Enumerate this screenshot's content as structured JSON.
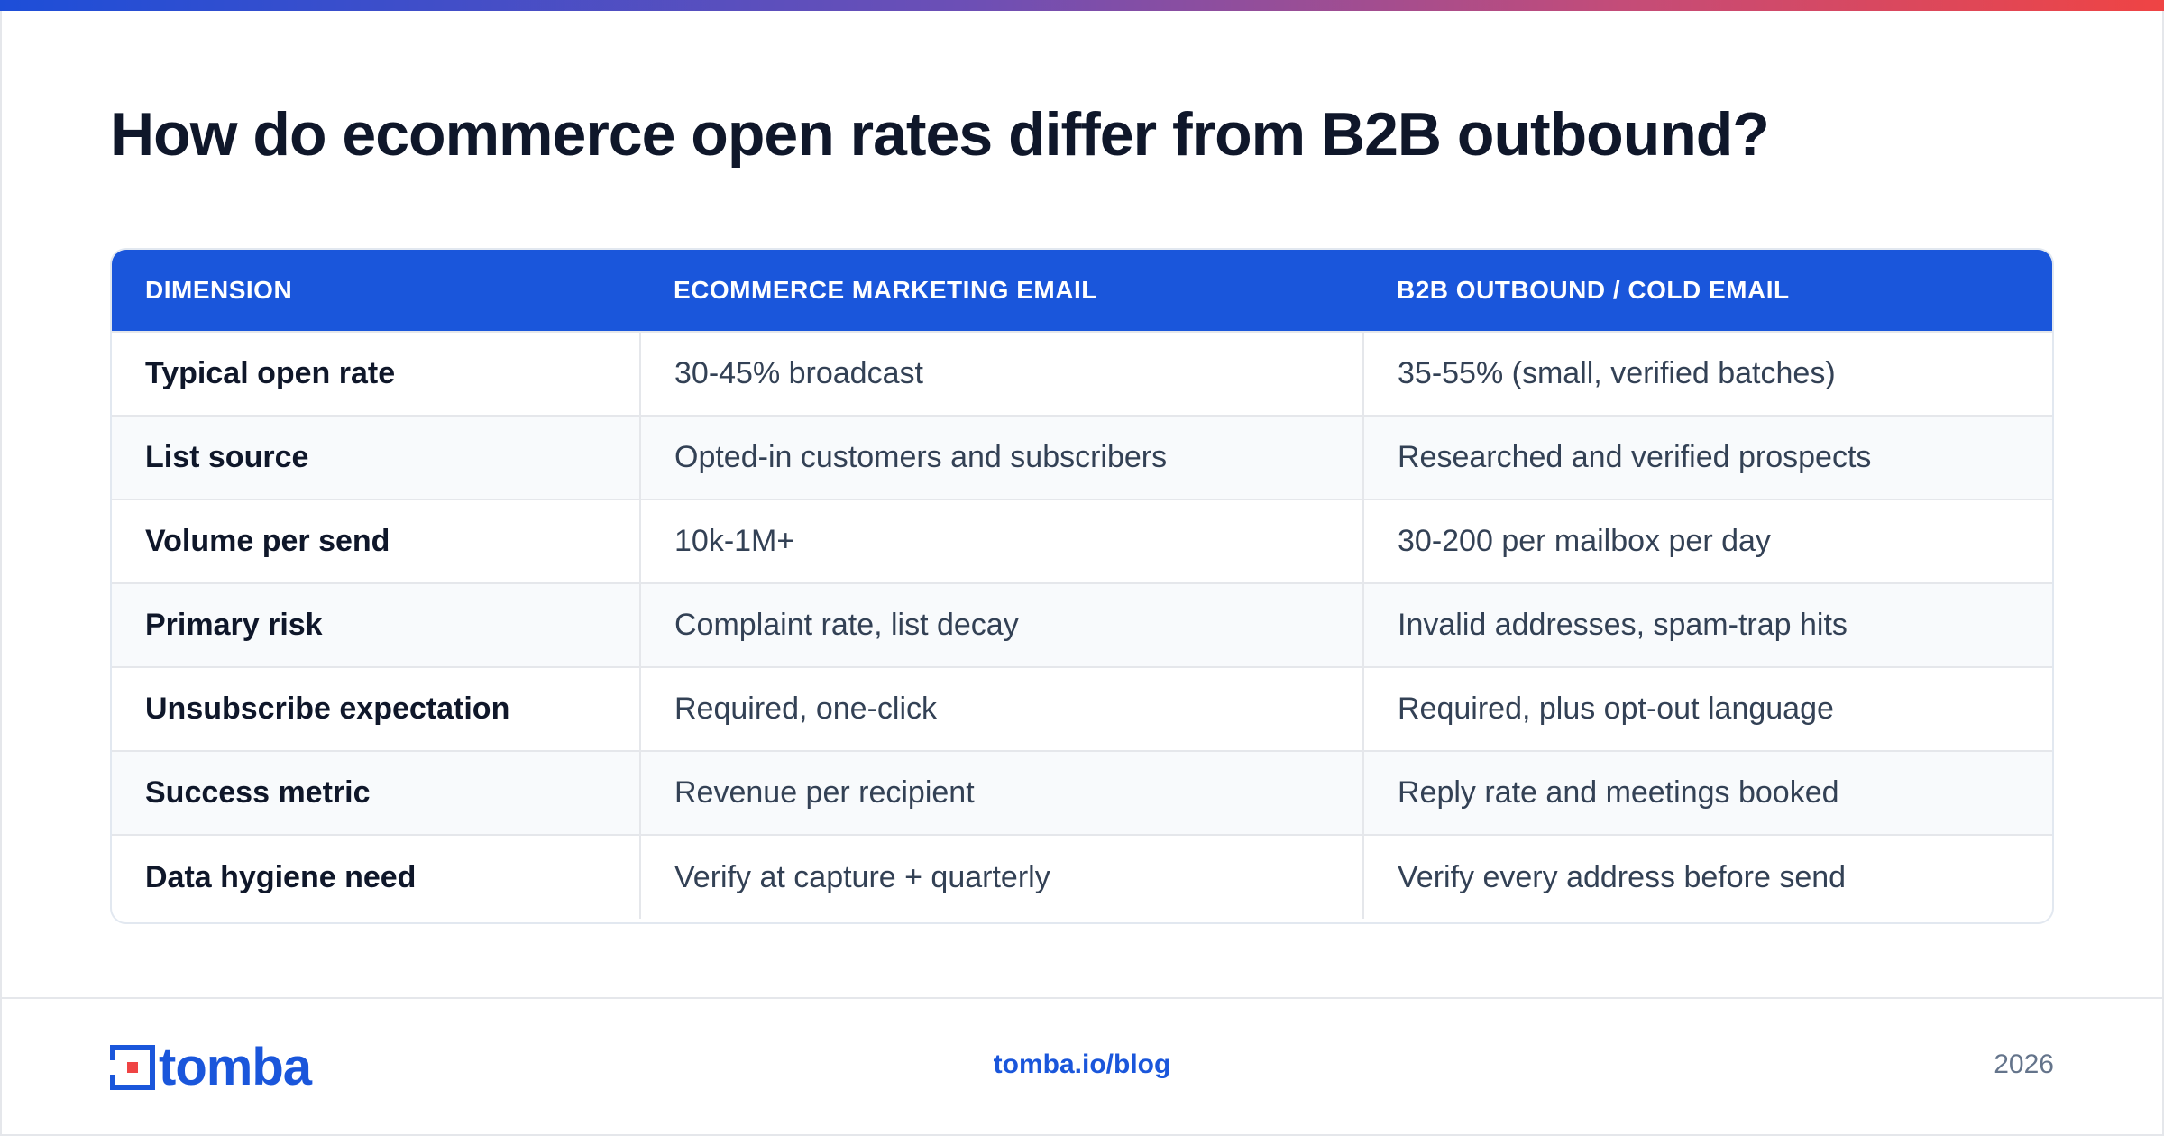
{
  "title": "How do ecommerce open rates differ from B2B outbound?",
  "table": {
    "headers": [
      "DIMENSION",
      "ECOMMERCE MARKETING EMAIL",
      "B2B OUTBOUND / COLD EMAIL"
    ],
    "rows": [
      [
        "Typical open rate",
        "30-45% broadcast",
        "35-55% (small, verified batches)"
      ],
      [
        "List source",
        "Opted-in customers and subscribers",
        "Researched and verified prospects"
      ],
      [
        "Volume per send",
        "10k-1M+",
        "30-200 per mailbox per day"
      ],
      [
        "Primary risk",
        "Complaint rate, list decay",
        "Invalid addresses, spam-trap hits"
      ],
      [
        "Unsubscribe expectation",
        "Required, one-click",
        "Required, plus opt-out language"
      ],
      [
        "Success metric",
        "Revenue per recipient",
        "Reply rate and meetings booked"
      ],
      [
        "Data hygiene need",
        "Verify at capture + quarterly",
        "Verify every address before send"
      ]
    ]
  },
  "footer": {
    "logo_text": "tomba",
    "logo_icon": "tomba-logo-icon",
    "link": "tomba.io/blog",
    "year": "2026"
  },
  "colors": {
    "accent": "#1a56db",
    "logo_red": "#ef4444",
    "gradient_start": "#1d4ed8",
    "gradient_end": "#ef4444"
  }
}
